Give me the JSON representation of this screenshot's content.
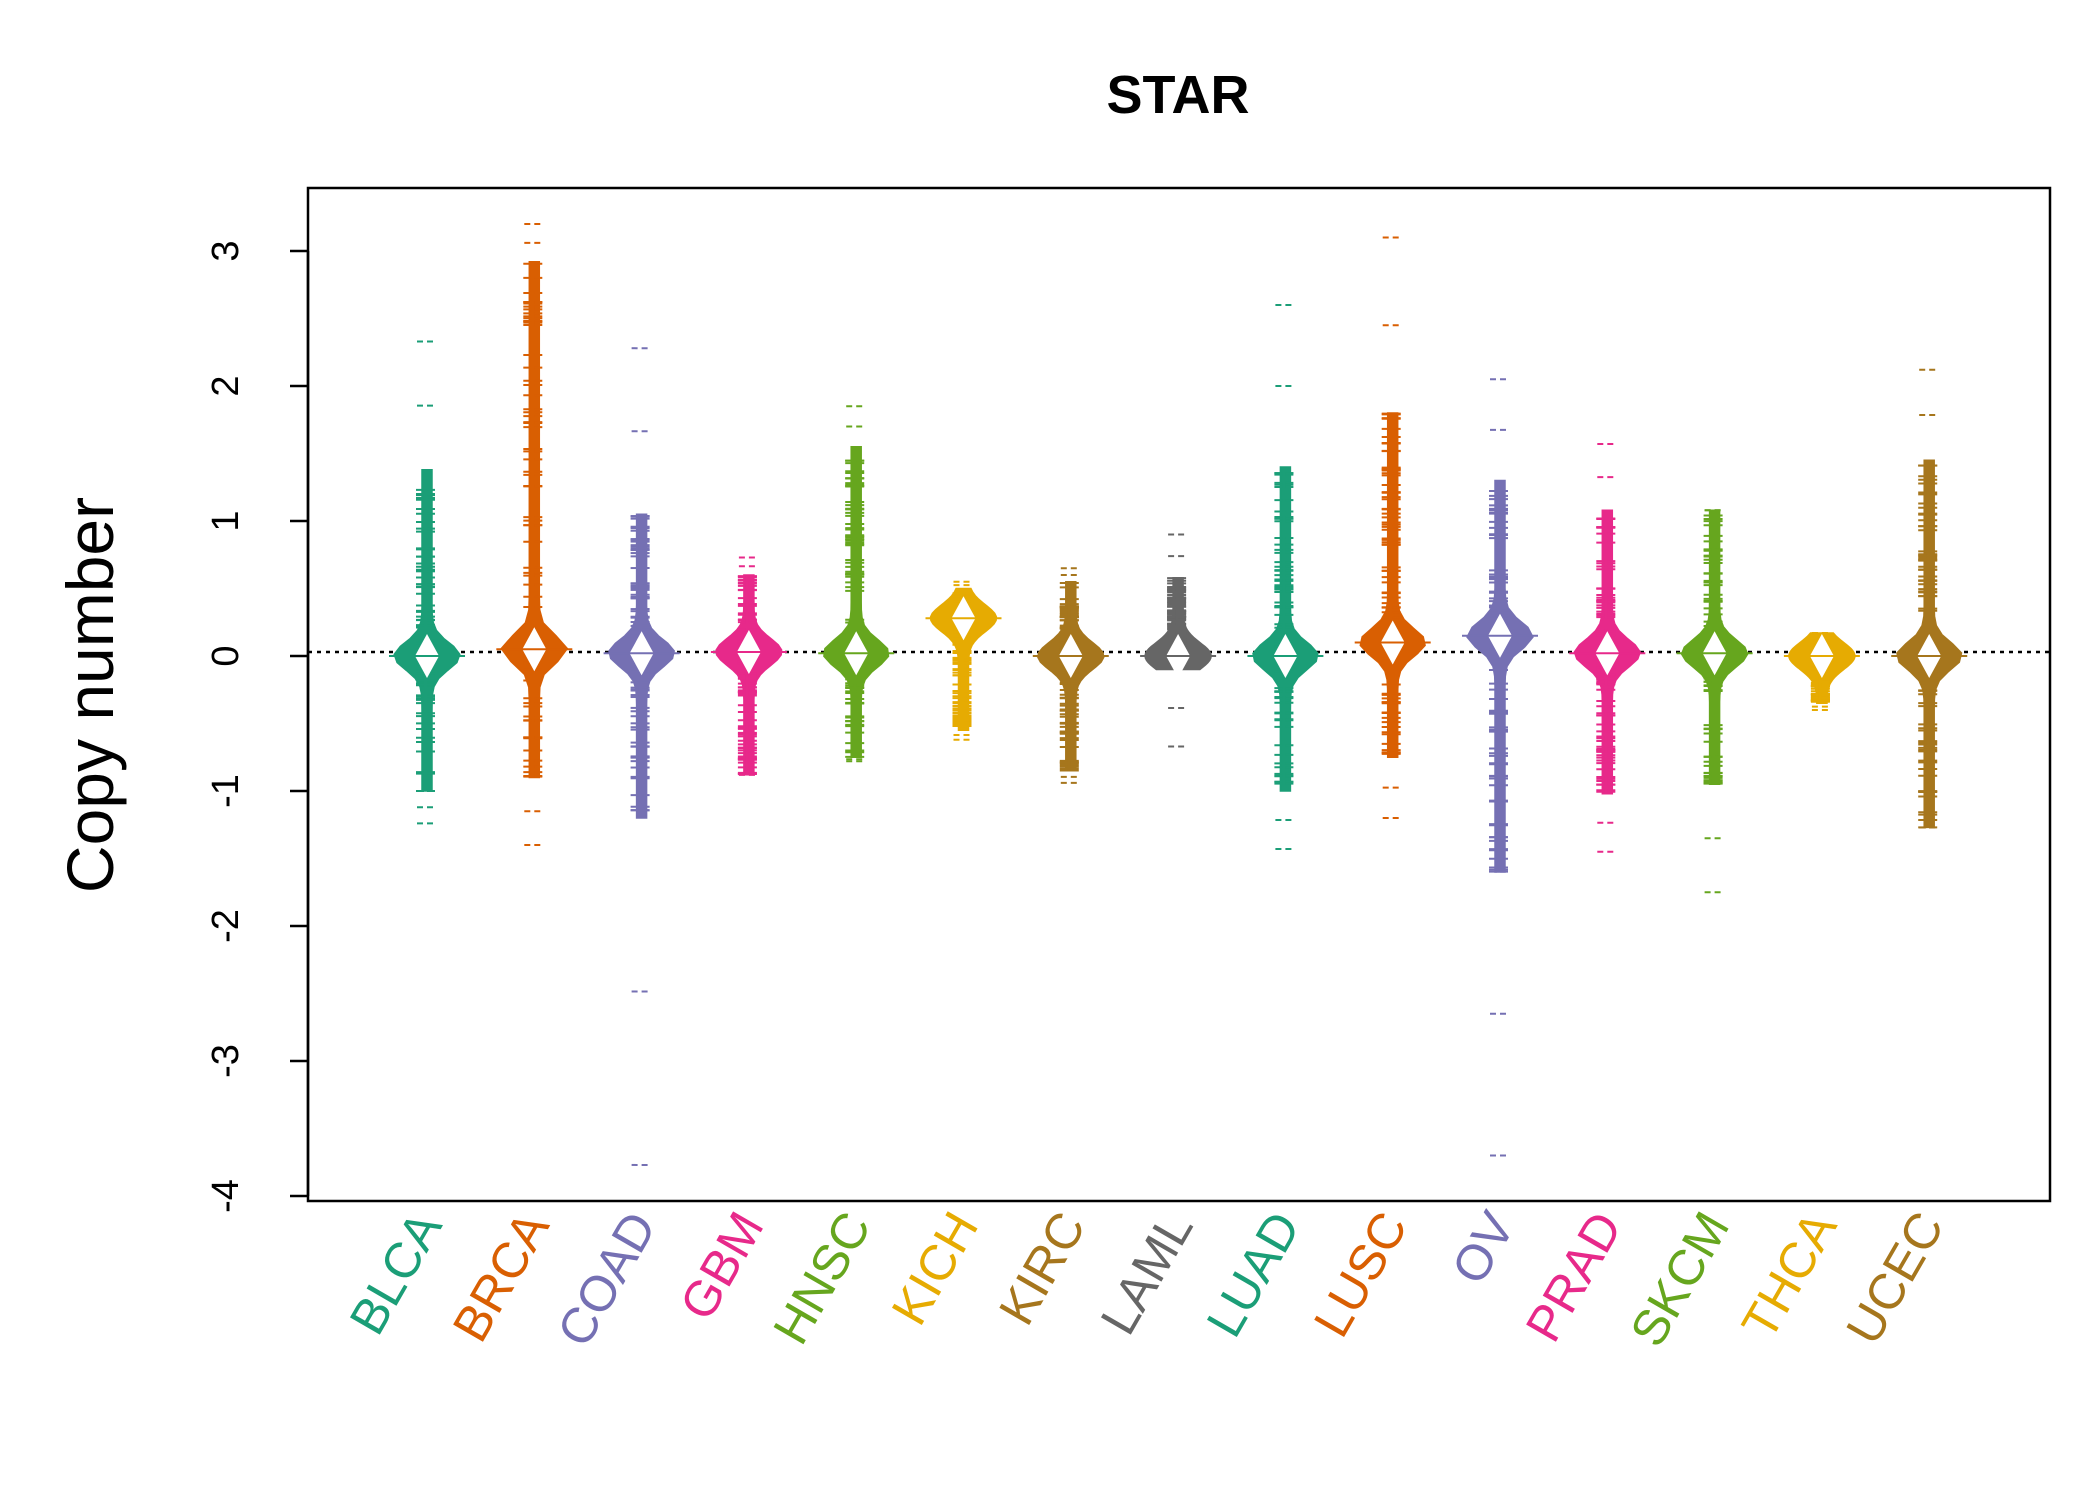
{
  "chart_data": {
    "type": "beanplot",
    "title": "STAR",
    "xlabel": "",
    "ylabel": "Copy number",
    "ylim": [
      -4,
      3.3
    ],
    "yticks": [
      -4,
      -3,
      -2,
      -1,
      0,
      1,
      2,
      3
    ],
    "reference_line": 0.03,
    "categories": [
      {
        "name": "BLCA",
        "color": "#1B9E77",
        "min": -1.24,
        "max": 2.33,
        "center": 0.0,
        "core_low": -1.0,
        "core_high": 1.38
      },
      {
        "name": "BRCA",
        "color": "#D95F02",
        "min": -1.4,
        "max": 3.2,
        "center": 0.05,
        "core_low": -0.9,
        "core_high": 2.92
      },
      {
        "name": "COAD",
        "color": "#7570B3",
        "min": -3.77,
        "max": 2.28,
        "center": 0.02,
        "core_low": -1.2,
        "core_high": 1.05
      },
      {
        "name": "GBM",
        "color": "#E7298A",
        "min": -0.88,
        "max": 0.73,
        "center": 0.03,
        "core_low": -0.88,
        "core_high": 0.6
      },
      {
        "name": "HNSC",
        "color": "#66A61E",
        "min": -0.78,
        "max": 1.85,
        "center": 0.02,
        "core_low": -0.75,
        "core_high": 1.55
      },
      {
        "name": "KICH",
        "color": "#E6AB02",
        "min": -0.62,
        "max": 0.55,
        "center": 0.28,
        "core_low": -0.55,
        "core_high": 0.5
      },
      {
        "name": "KIRC",
        "color": "#A6761D",
        "min": -0.94,
        "max": 0.65,
        "center": 0.0,
        "core_low": -0.85,
        "core_high": 0.55
      },
      {
        "name": "LAML",
        "color": "#666666",
        "min": -0.67,
        "max": 0.9,
        "center": 0.0,
        "core_low": -0.1,
        "core_high": 0.58
      },
      {
        "name": "LUAD",
        "color": "#1B9E77",
        "min": -1.43,
        "max": 2.6,
        "center": 0.0,
        "core_low": -1.0,
        "core_high": 1.4
      },
      {
        "name": "LUSC",
        "color": "#D95F02",
        "min": -1.2,
        "max": 3.1,
        "center": 0.1,
        "core_low": -0.75,
        "core_high": 1.8
      },
      {
        "name": "OV",
        "color": "#7570B3",
        "min": -3.7,
        "max": 2.05,
        "center": 0.15,
        "core_low": -1.6,
        "core_high": 1.3
      },
      {
        "name": "PRAD",
        "color": "#E7298A",
        "min": -1.45,
        "max": 1.57,
        "center": 0.02,
        "core_low": -1.02,
        "core_high": 1.08
      },
      {
        "name": "SKCM",
        "color": "#66A61E",
        "min": -1.75,
        "max": 1.08,
        "center": 0.02,
        "core_low": -0.95,
        "core_high": 1.08
      },
      {
        "name": "THCA",
        "color": "#E6AB02",
        "min": -0.4,
        "max": 0.17,
        "center": 0.0,
        "core_low": -0.35,
        "core_high": 0.17
      },
      {
        "name": "UCEC",
        "color": "#A6761D",
        "min": -1.27,
        "max": 2.12,
        "center": 0.0,
        "core_low": -1.27,
        "core_high": 1.45
      }
    ]
  }
}
